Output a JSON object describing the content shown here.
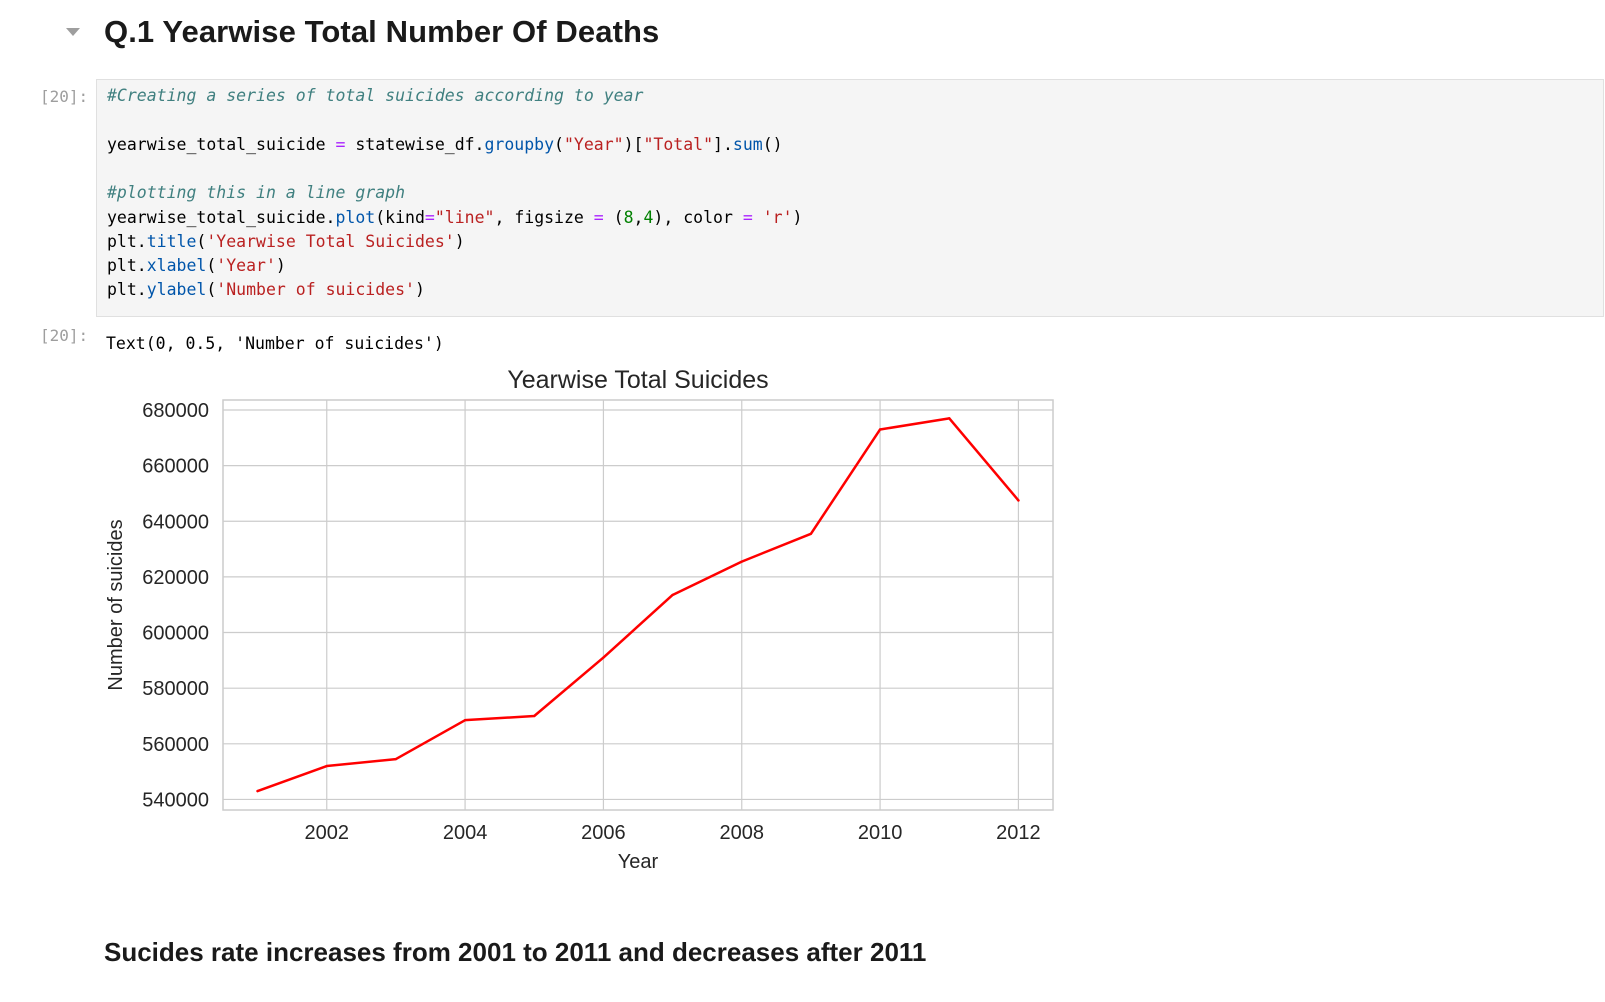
{
  "heading": {
    "text": "Q.1 Yearwise Total Number Of Deaths"
  },
  "input_cell": {
    "prompt": "[20]:",
    "lines": [
      [
        {
          "t": "#Creating a series of total suicides according to year",
          "k": "cm"
        }
      ],
      [],
      [
        {
          "t": "yearwise_total_suicide "
        },
        {
          "t": "=",
          "k": "op"
        },
        {
          "t": " statewise_df."
        },
        {
          "t": "groupby",
          "k": "fn"
        },
        {
          "t": "("
        },
        {
          "t": "\"Year\"",
          "k": "st"
        },
        {
          "t": ")["
        },
        {
          "t": "\"Total\"",
          "k": "st"
        },
        {
          "t": "]."
        },
        {
          "t": "sum",
          "k": "fn"
        },
        {
          "t": "()"
        }
      ],
      [],
      [
        {
          "t": "#plotting this in a line graph",
          "k": "cm"
        }
      ],
      [
        {
          "t": "yearwise_total_suicide."
        },
        {
          "t": "plot",
          "k": "fn"
        },
        {
          "t": "(kind"
        },
        {
          "t": "=",
          "k": "op"
        },
        {
          "t": "\"line\"",
          "k": "st"
        },
        {
          "t": ", figsize "
        },
        {
          "t": "=",
          "k": "op"
        },
        {
          "t": " ("
        },
        {
          "t": "8",
          "k": "nu"
        },
        {
          "t": ","
        },
        {
          "t": "4",
          "k": "nu"
        },
        {
          "t": "), color "
        },
        {
          "t": "=",
          "k": "op"
        },
        {
          "t": " "
        },
        {
          "t": "'r'",
          "k": "st"
        },
        {
          "t": ")"
        }
      ],
      [
        {
          "t": "plt."
        },
        {
          "t": "title",
          "k": "fn"
        },
        {
          "t": "("
        },
        {
          "t": "'Yearwise Total Suicides'",
          "k": "st"
        },
        {
          "t": ")"
        }
      ],
      [
        {
          "t": "plt."
        },
        {
          "t": "xlabel",
          "k": "fn"
        },
        {
          "t": "("
        },
        {
          "t": "'Year'",
          "k": "st"
        },
        {
          "t": ")"
        }
      ],
      [
        {
          "t": "plt."
        },
        {
          "t": "ylabel",
          "k": "fn"
        },
        {
          "t": "("
        },
        {
          "t": "'Number of suicides'",
          "k": "st"
        },
        {
          "t": ")"
        }
      ]
    ]
  },
  "output_cell": {
    "prompt": "[20]:",
    "text": "Text(0, 0.5, 'Number of suicides')"
  },
  "chart_data": {
    "type": "line",
    "title": "Yearwise Total Suicides",
    "xlabel": "Year",
    "ylabel": "Number of suicides",
    "x": [
      2001,
      2002,
      2003,
      2004,
      2005,
      2006,
      2007,
      2008,
      2009,
      2010,
      2011,
      2012
    ],
    "series": [
      {
        "name": "Total",
        "color": "#ff0000",
        "values": [
          543000,
          552000,
          554500,
          568500,
          570000,
          591000,
          613500,
          625500,
          635500,
          673000,
          677000,
          647500
        ]
      }
    ],
    "xticks": [
      2002,
      2004,
      2006,
      2008,
      2010,
      2012
    ],
    "xtick_labels": [
      "2002",
      "2004",
      "2006",
      "2008",
      "2010",
      "2012"
    ],
    "yticks": [
      540000,
      560000,
      580000,
      600000,
      620000,
      640000,
      660000,
      680000
    ],
    "ytick_labels": [
      "540000",
      "560000",
      "580000",
      "600000",
      "620000",
      "640000",
      "660000",
      "680000"
    ],
    "xlim": [
      2000.5,
      2012.5
    ],
    "ylim": [
      536200,
      683600
    ],
    "grid": true
  },
  "markdown": {
    "text": "Sucides rate increases from 2001 to 2011 and decreases after 2011"
  }
}
